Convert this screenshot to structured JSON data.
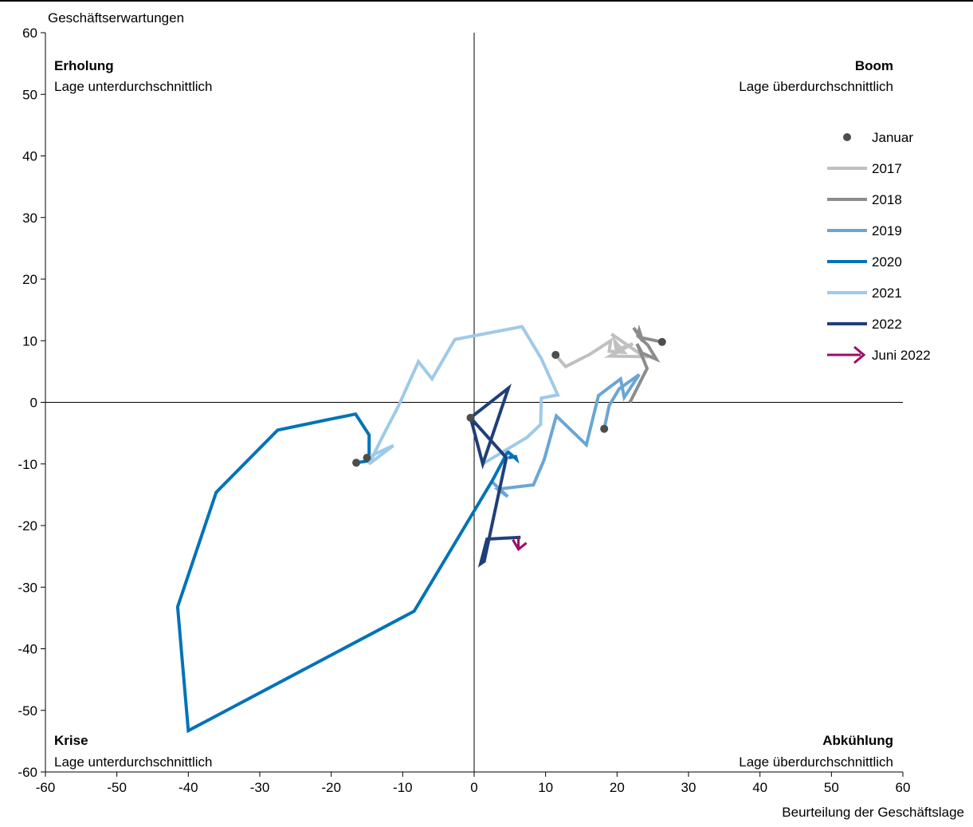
{
  "chart_data": {
    "type": "line",
    "ylabel": "Geschäftserwartungen",
    "xlabel": "Beurteilung der Geschäftslage",
    "xlim": [
      -60,
      60
    ],
    "ylim": [
      -60,
      60
    ],
    "xticks": [
      -60,
      -50,
      -40,
      -30,
      -20,
      -10,
      0,
      10,
      20,
      30,
      40,
      50,
      60
    ],
    "yticks": [
      -60,
      -50,
      -40,
      -30,
      -20,
      -10,
      0,
      10,
      20,
      30,
      40,
      50,
      60
    ],
    "grid": false,
    "legend_position": "right",
    "quadrants": [
      {
        "title": "Erholung",
        "subtitle": "Lage unterdurchschnittlich",
        "position": "top-left"
      },
      {
        "title": "Boom",
        "subtitle": "Lage überdurchschnittlich",
        "position": "top-right"
      },
      {
        "title": "Krise",
        "subtitle": "Lage unterdurchschnittlich",
        "position": "bottom-left"
      },
      {
        "title": "Abkühlung",
        "subtitle": "Lage überdurchschnittlich",
        "position": "bottom-right"
      }
    ],
    "january_marker": {
      "name": "Januar",
      "color": "#4d4d4d"
    },
    "current_marker": {
      "name": "Juni 2022",
      "color": "#9b0d68",
      "from": [
        6.2,
        -21.8
      ],
      "to": [
        6.2,
        -23.6
      ]
    },
    "series": [
      {
        "name": "2017",
        "color": "#c0c0c0",
        "points": [
          [
            11.4,
            7.7
          ],
          [
            12.8,
            5.8
          ],
          [
            16.2,
            7.8
          ],
          [
            19.1,
            10.0
          ],
          [
            18.9,
            8.3
          ],
          [
            21.0,
            8.1
          ],
          [
            19.7,
            9.9
          ],
          [
            19.9,
            8.5
          ],
          [
            22.2,
            9.5
          ],
          [
            19.0,
            7.5
          ],
          [
            23.8,
            7.4
          ],
          [
            19.2,
            11.1
          ]
        ]
      },
      {
        "name": "2018",
        "color": "#8c8c8c",
        "points": [
          [
            26.3,
            9.8
          ],
          [
            23.4,
            10.5
          ],
          [
            22.3,
            12.1
          ],
          [
            23.6,
            9.9
          ],
          [
            23.1,
            11.7
          ],
          [
            22.9,
            10.8
          ],
          [
            24.3,
            9.3
          ],
          [
            25.5,
            7.0
          ],
          [
            23.5,
            8.0
          ],
          [
            22.8,
            9.5
          ],
          [
            24.2,
            5.5
          ],
          [
            21.8,
            0.0
          ]
        ]
      },
      {
        "name": "2019",
        "color": "#6aa6d4",
        "points": [
          [
            18.2,
            -4.3
          ],
          [
            18.9,
            -0.5
          ],
          [
            20.3,
            2.2
          ],
          [
            23.1,
            4.5
          ],
          [
            21.0,
            0.8
          ],
          [
            20.5,
            3.8
          ],
          [
            17.4,
            1.1
          ],
          [
            15.7,
            -6.9
          ],
          [
            11.5,
            -2.2
          ],
          [
            9.8,
            -9.3
          ],
          [
            8.3,
            -13.4
          ],
          [
            3.3,
            -14.1
          ],
          [
            4.7,
            -15.3
          ],
          [
            2.5,
            -12.9
          ]
        ]
      },
      {
        "name": "2020",
        "color": "#0073b8",
        "points": [
          [
            -16.5,
            -9.8
          ],
          [
            -14.7,
            -9.5
          ],
          [
            -14.7,
            -5.3
          ],
          [
            -16.6,
            -1.9
          ],
          [
            -20.4,
            -2.8
          ],
          [
            -27.5,
            -4.5
          ],
          [
            -36.1,
            -14.6
          ],
          [
            -41.5,
            -33.2
          ],
          [
            -40.0,
            -53.3
          ],
          [
            -8.4,
            -33.9
          ],
          [
            2.6,
            -12.6
          ],
          [
            4.7,
            -8.0
          ],
          [
            5.9,
            -9.2
          ],
          [
            5.8,
            -8.8
          ],
          [
            4.8,
            -9.0
          ]
        ]
      },
      {
        "name": "2021",
        "color": "#9ecae8",
        "points": [
          [
            -15.0,
            -9.0
          ],
          [
            -11.3,
            -7.0
          ],
          [
            -14.7,
            -10.0
          ],
          [
            -13.0,
            -6.0
          ],
          [
            -10.6,
            -0.6
          ],
          [
            -7.8,
            6.6
          ],
          [
            -5.9,
            3.8
          ],
          [
            -2.7,
            10.2
          ],
          [
            6.7,
            12.3
          ],
          [
            9.4,
            7.1
          ],
          [
            11.7,
            1.2
          ],
          [
            9.4,
            0.7
          ],
          [
            9.3,
            -3.6
          ],
          [
            7.4,
            -5.7
          ],
          [
            2.2,
            -9.3
          ],
          [
            1.2,
            -10.0
          ]
        ]
      },
      {
        "name": "2022",
        "color": "#1f3f7a",
        "points": [
          [
            -0.5,
            -2.5
          ],
          [
            1.2,
            -10.0
          ],
          [
            4.8,
            2.3
          ],
          [
            -0.5,
            -2.5
          ],
          [
            4.5,
            -9.0
          ],
          [
            1.4,
            -25.8
          ],
          [
            0.9,
            -26.2
          ],
          [
            1.8,
            -22.2
          ],
          [
            6.5,
            -21.9
          ]
        ]
      }
    ]
  }
}
